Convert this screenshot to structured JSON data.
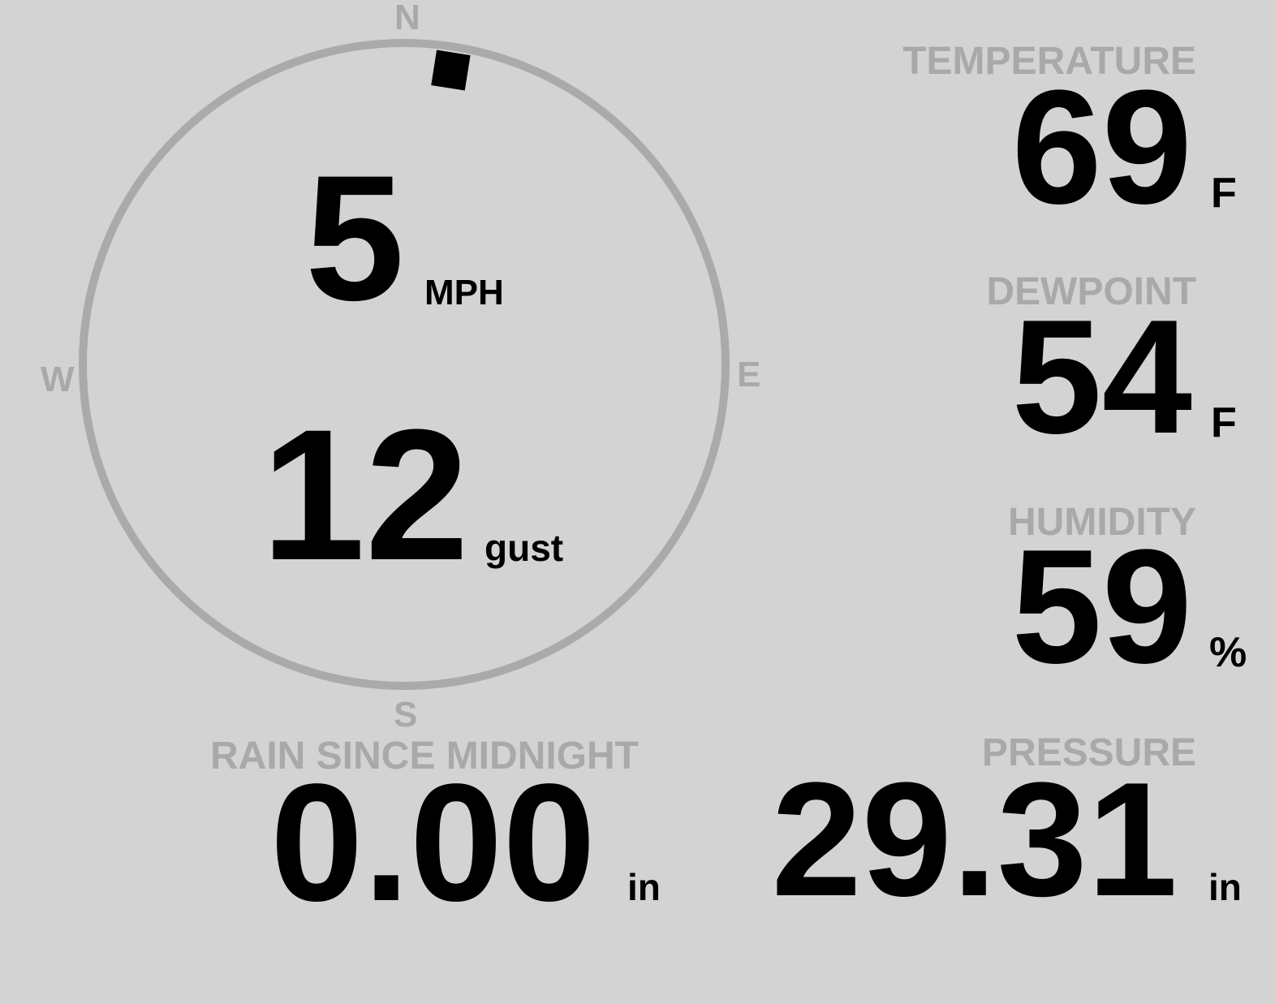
{
  "wind": {
    "speed": "5",
    "speed_unit": "MPH",
    "gust": "12",
    "gust_unit": "gust",
    "direction_deg": 9,
    "compass": {
      "north": "N",
      "east": "E",
      "south": "S",
      "west": "W"
    }
  },
  "temperature": {
    "label": "TEMPERATURE",
    "value": "69",
    "unit": "F"
  },
  "dewpoint": {
    "label": "DEWPOINT",
    "value": "54",
    "unit": "F"
  },
  "humidity": {
    "label": "HUMIDITY",
    "value": "59",
    "unit": "%"
  },
  "rain": {
    "label": "RAIN SINCE MIDNIGHT",
    "value": "0.00",
    "unit": "in"
  },
  "pressure": {
    "label": "PRESSURE",
    "value": "29.31",
    "unit": "in"
  },
  "colors": {
    "background": "#d3d3d3",
    "label": "#a9a9a9",
    "value": "#000000",
    "dial": "#aaaaaa"
  }
}
